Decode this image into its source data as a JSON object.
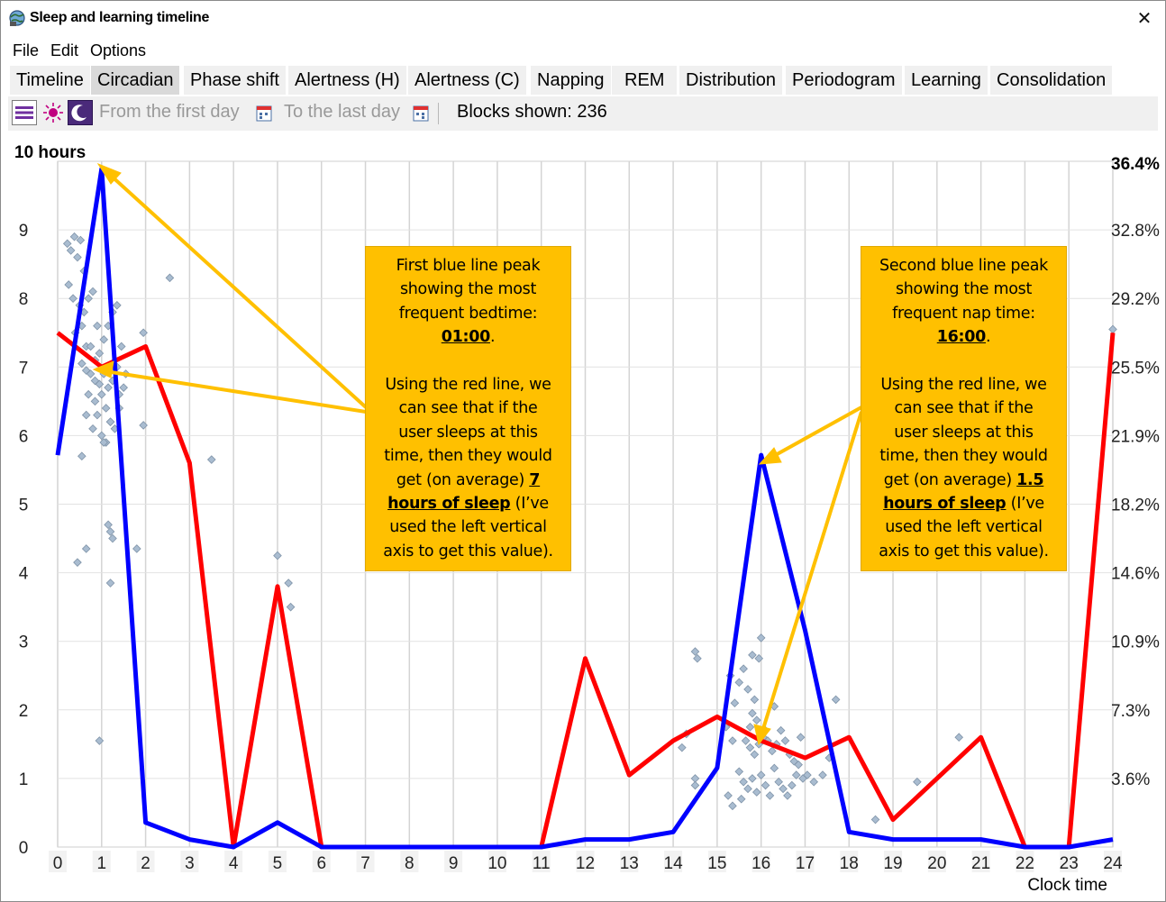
{
  "window": {
    "title": "Sleep and learning timeline"
  },
  "menu": [
    "File",
    "Edit",
    "Options"
  ],
  "tabs": [
    {
      "label": "Timeline",
      "active": false
    },
    {
      "label": "Circadian",
      "active": true
    },
    {
      "label": "Phase shift",
      "active": false
    },
    {
      "label": "Alertness (H)",
      "active": false
    },
    {
      "label": "Alertness (C)",
      "active": false
    },
    {
      "label": "Napping",
      "active": false
    },
    {
      "label": "REM",
      "active": false
    },
    {
      "label": "Distribution",
      "active": false
    },
    {
      "label": "Periodogram",
      "active": false
    },
    {
      "label": "Learning",
      "active": false
    },
    {
      "label": "Consolidation",
      "active": false
    }
  ],
  "toolbar": {
    "from_label": "From the first day",
    "to_label": "To the last day",
    "blocks_label": "Blocks shown: 236"
  },
  "colors": {
    "blue_line": "#0000ff",
    "red_line": "#ff0000",
    "points": "#a9bcd0",
    "annotation": "#ffc000",
    "arrow": "#ffc000"
  },
  "annotations": {
    "left": {
      "line1": "First blue line peak",
      "line2": "showing the most",
      "line3": "frequent bedtime:",
      "time": "01:00",
      "line5": "Using the red line, we",
      "line6": "can see that if the",
      "line7": "user sleeps at this",
      "line8": "time, then they would",
      "line9_pre": "get (on average) ",
      "hours_num": "7",
      "hours_text": "hours of sleep",
      "line10_post": " (I’ve",
      "line11": "used the left vertical",
      "line12": "axis to get this value)."
    },
    "right": {
      "line1": "Second blue line peak",
      "line2": "showing the most",
      "line3": "frequent nap time:",
      "time": "16:00",
      "line5": "Using the red line, we",
      "line6": "can see that if the",
      "line7": "user sleeps at this",
      "line8": "time, then they would",
      "line9_pre": "get (on average) ",
      "hours_num": "1.5",
      "hours_text": "hours of sleep",
      "line10_post": " (I’ve",
      "line11": "used the left vertical",
      "line12": "axis to get this value)."
    }
  },
  "chart_data": {
    "type": "line",
    "xlabel": "Clock time",
    "x": [
      0,
      1,
      2,
      3,
      4,
      5,
      6,
      7,
      8,
      9,
      10,
      11,
      12,
      13,
      14,
      15,
      16,
      17,
      18,
      19,
      20,
      21,
      22,
      23,
      24
    ],
    "xlim": [
      0,
      24
    ],
    "ylim": [
      0,
      10
    ],
    "y_ticks": [
      "0",
      "1",
      "2",
      "3",
      "4",
      "5",
      "6",
      "7",
      "8",
      "9"
    ],
    "y_top_label": "10 hours",
    "y2_ticks": [
      "3.6%",
      "7.3%",
      "10.9%",
      "14.6%",
      "18.2%",
      "21.9%",
      "25.5%",
      "29.2%",
      "32.8%"
    ],
    "y2_top_label": "36.4%",
    "y2_max": 36.4,
    "grid": true,
    "series": [
      {
        "color": "blue",
        "axis": "right",
        "values": [
          20.8,
          36.0,
          1.3,
          0.4,
          0.0,
          1.3,
          0.0,
          0.0,
          0.0,
          0.0,
          0.0,
          0.0,
          0.4,
          0.4,
          0.8,
          4.2,
          20.8,
          11.5,
          0.8,
          0.4,
          0.4,
          0.4,
          0.0,
          0.0,
          0.4
        ]
      },
      {
        "color": "red",
        "axis": "left",
        "values": [
          7.5,
          7.0,
          7.3,
          5.6,
          0.0,
          3.8,
          0.0,
          null,
          null,
          null,
          null,
          0.0,
          2.75,
          1.05,
          1.55,
          1.9,
          1.55,
          1.3,
          1.6,
          0.4,
          1.0,
          1.6,
          0.0,
          0.0,
          7.5
        ]
      }
    ],
    "scatter_points": [
      [
        0.22,
        8.8
      ],
      [
        0.3,
        8.7
      ],
      [
        0.38,
        8.9
      ],
      [
        0.45,
        8.6
      ],
      [
        0.52,
        8.85
      ],
      [
        0.6,
        8.4
      ],
      [
        0.25,
        8.2
      ],
      [
        0.35,
        8.0
      ],
      [
        0.5,
        7.9
      ],
      [
        0.6,
        7.8
      ],
      [
        0.7,
        8.0
      ],
      [
        0.8,
        8.1
      ],
      [
        0.9,
        7.6
      ],
      [
        0.4,
        7.5
      ],
      [
        0.55,
        7.6
      ],
      [
        0.65,
        7.3
      ],
      [
        0.75,
        7.3
      ],
      [
        0.85,
        7.1
      ],
      [
        0.95,
        7.2
      ],
      [
        1.05,
        7.4
      ],
      [
        1.15,
        7.6
      ],
      [
        1.25,
        7.8
      ],
      [
        1.35,
        7.9
      ],
      [
        1.45,
        7.3
      ],
      [
        0.55,
        7.05
      ],
      [
        0.65,
        6.95
      ],
      [
        0.75,
        6.9
      ],
      [
        0.85,
        6.8
      ],
      [
        0.95,
        6.75
      ],
      [
        1.05,
        6.9
      ],
      [
        1.15,
        6.7
      ],
      [
        1.25,
        6.8
      ],
      [
        1.35,
        7.0
      ],
      [
        0.7,
        6.6
      ],
      [
        0.85,
        6.5
      ],
      [
        1.0,
        6.6
      ],
      [
        1.1,
        6.4
      ],
      [
        1.2,
        6.2
      ],
      [
        1.3,
        6.1
      ],
      [
        1.4,
        6.4
      ],
      [
        0.65,
        6.3
      ],
      [
        0.8,
        6.1
      ],
      [
        0.9,
        6.3
      ],
      [
        1.0,
        6.0
      ],
      [
        1.1,
        5.9
      ],
      [
        1.2,
        6.2
      ],
      [
        1.4,
        6.6
      ],
      [
        1.5,
        6.7
      ],
      [
        0.55,
        5.7
      ],
      [
        1.05,
        5.9
      ],
      [
        1.15,
        4.7
      ],
      [
        1.2,
        4.6
      ],
      [
        1.25,
        4.5
      ],
      [
        0.65,
        4.35
      ],
      [
        0.45,
        4.15
      ],
      [
        1.2,
        3.85
      ],
      [
        1.95,
        6.15
      ],
      [
        1.95,
        7.5
      ],
      [
        1.55,
        6.9
      ],
      [
        2.55,
        8.3
      ],
      [
        1.8,
        4.35
      ],
      [
        0.95,
        1.55
      ],
      [
        3.5,
        5.65
      ],
      [
        5.0,
        4.25
      ],
      [
        5.25,
        3.85
      ],
      [
        5.3,
        3.5
      ],
      [
        14.5,
        2.85
      ],
      [
        14.55,
        2.75
      ],
      [
        14.3,
        1.65
      ],
      [
        14.2,
        1.45
      ],
      [
        14.5,
        1.0
      ],
      [
        14.5,
        0.9
      ],
      [
        15.3,
        2.5
      ],
      [
        15.4,
        2.1
      ],
      [
        15.5,
        2.4
      ],
      [
        15.6,
        2.6
      ],
      [
        15.7,
        2.3
      ],
      [
        15.75,
        1.75
      ],
      [
        15.8,
        1.95
      ],
      [
        15.85,
        2.15
      ],
      [
        15.9,
        1.85
      ],
      [
        15.95,
        2.75
      ],
      [
        16.0,
        3.05
      ],
      [
        16.1,
        1.7
      ],
      [
        15.65,
        1.55
      ],
      [
        15.75,
        1.45
      ],
      [
        15.85,
        1.35
      ],
      [
        15.95,
        1.5
      ],
      [
        16.05,
        1.6
      ],
      [
        16.15,
        1.55
      ],
      [
        16.25,
        1.4
      ],
      [
        16.35,
        1.5
      ],
      [
        16.45,
        1.7
      ],
      [
        16.55,
        1.55
      ],
      [
        16.65,
        1.35
      ],
      [
        16.75,
        1.25
      ],
      [
        16.85,
        1.2
      ],
      [
        16.95,
        1.0
      ],
      [
        17.05,
        1.05
      ],
      [
        17.2,
        0.95
      ],
      [
        17.4,
        1.05
      ],
      [
        15.5,
        1.1
      ],
      [
        15.6,
        0.95
      ],
      [
        15.7,
        0.85
      ],
      [
        15.8,
        1.0
      ],
      [
        15.9,
        0.8
      ],
      [
        16.0,
        1.05
      ],
      [
        16.1,
        0.9
      ],
      [
        16.2,
        0.75
      ],
      [
        16.3,
        1.15
      ],
      [
        16.4,
        0.95
      ],
      [
        16.5,
        0.85
      ],
      [
        16.6,
        0.75
      ],
      [
        16.7,
        0.9
      ],
      [
        16.8,
        1.05
      ],
      [
        15.55,
        0.7
      ],
      [
        15.35,
        0.6
      ],
      [
        15.25,
        0.75
      ],
      [
        15.8,
        2.8
      ],
      [
        15.2,
        1.75
      ],
      [
        15.35,
        1.55
      ],
      [
        16.3,
        2.05
      ],
      [
        16.9,
        1.6
      ],
      [
        17.7,
        2.15
      ],
      [
        17.55,
        1.3
      ],
      [
        18.6,
        0.4
      ],
      [
        19.55,
        0.95
      ],
      [
        20.5,
        1.6
      ],
      [
        24.0,
        7.55
      ]
    ]
  }
}
